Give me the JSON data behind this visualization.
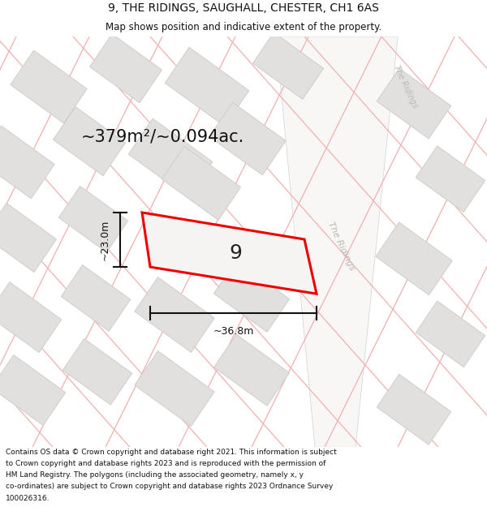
{
  "title_line1": "9, THE RIDINGS, SAUGHALL, CHESTER, CH1 6AS",
  "title_line2": "Map shows position and indicative extent of the property.",
  "area_text": "~379m²/~0.094ac.",
  "property_number": "9",
  "dim_width": "~36.8m",
  "dim_height": "~23.0m",
  "footer_lines": [
    "Contains OS data © Crown copyright and database right 2021. This information is subject",
    "to Crown copyright and database rights 2023 and is reproduced with the permission of",
    "HM Land Registry. The polygons (including the associated geometry, namely x, y",
    "co-ordinates) are subject to Crown copyright and database rights 2023 Ordnance Survey",
    "100026316."
  ],
  "bg_color": "#ffffff",
  "map_bg": "#f0efed",
  "building_fill": "#e2e0de",
  "building_edge": "#d0cecb",
  "street_color": "#f0b0b0",
  "road_fill": "#fafafa",
  "road_edge": "#d8d8d8",
  "property_color": "#ee0000",
  "dim_line_color": "#111111",
  "title_color": "#111111",
  "footer_color": "#111111",
  "road_label_color": "#b8b8b8"
}
